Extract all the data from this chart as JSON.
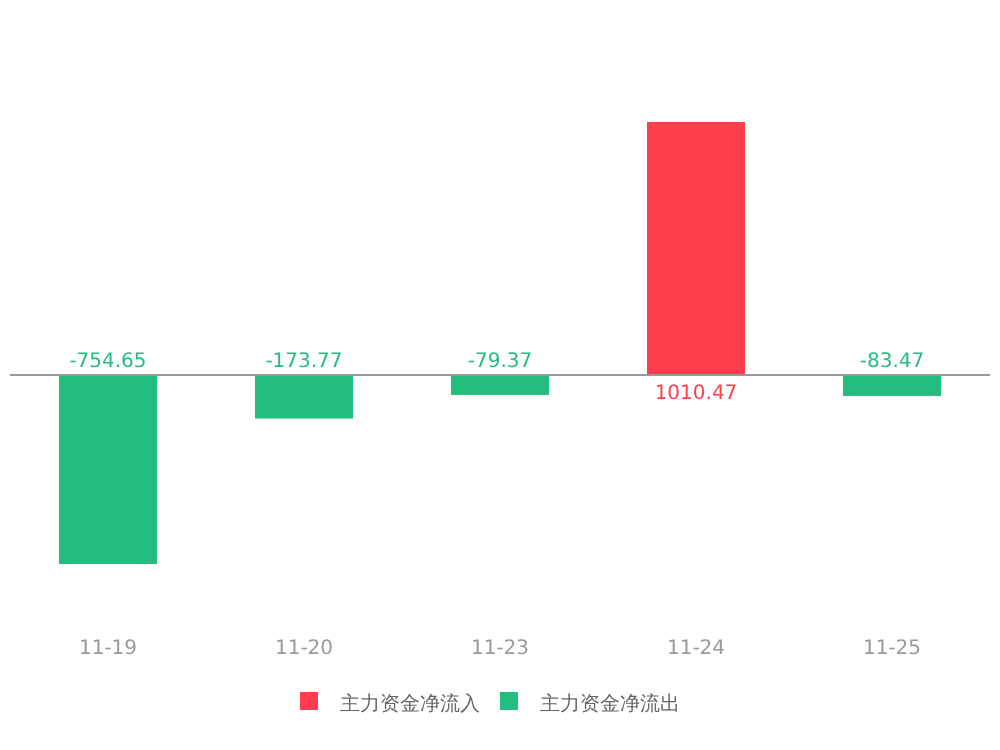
{
  "chart_data": {
    "type": "bar",
    "categories": [
      "11-19",
      "11-20",
      "11-23",
      "11-24",
      "11-25"
    ],
    "series": [
      {
        "name": "主力资金净流入",
        "color": "#ff3e4d",
        "values": [
          null,
          null,
          null,
          1010.47,
          null
        ]
      },
      {
        "name": "主力资金净流出",
        "color": "#23bd7f",
        "values": [
          -754.65,
          -173.77,
          -79.37,
          null,
          -83.47
        ]
      }
    ],
    "data_labels": true,
    "legend": "bottom",
    "grid": false
  }
}
